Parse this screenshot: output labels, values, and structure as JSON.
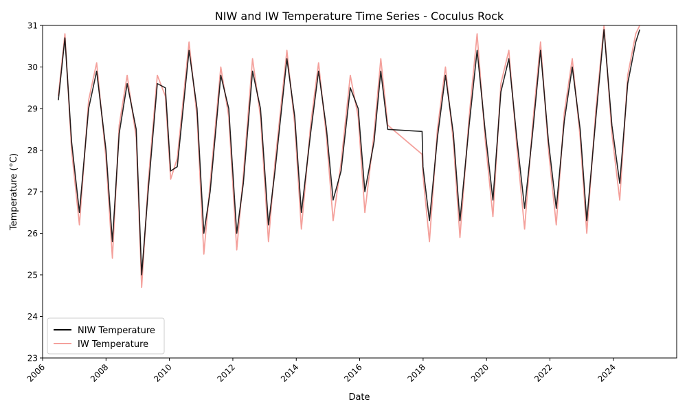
{
  "chart_data": {
    "type": "line",
    "title": "NIW and IW Temperature Time Series - Coculus Rock",
    "xlabel": "Date",
    "ylabel": "Temperature (°C)",
    "xlim": [
      "2006-01-01",
      "2025-12-31"
    ],
    "ylim": [
      23,
      31
    ],
    "x_ticks": [
      "2006",
      "2008",
      "2010",
      "2012",
      "2014",
      "2016",
      "2018",
      "2020",
      "2022",
      "2024"
    ],
    "y_ticks": [
      23,
      24,
      25,
      26,
      27,
      28,
      29,
      30,
      31
    ],
    "grid": false,
    "legend_position": "lower-left",
    "series": [
      {
        "name": "NIW Temperature",
        "color": "#000000",
        "x": [
          "2006-07-01",
          "2006-09-15",
          "2006-12-01",
          "2007-03-01",
          "2007-06-15",
          "2007-09-15",
          "2008-01-01",
          "2008-03-15",
          "2008-06-01",
          "2008-09-01",
          "2008-12-15",
          "2009-02-15",
          "2009-05-01",
          "2009-08-15",
          "2009-11-15",
          "2010-01-15",
          "2010-04-01",
          "2010-08-15",
          "2010-11-15",
          "2011-02-01",
          "2011-04-15",
          "2011-08-15",
          "2011-11-15",
          "2012-02-15",
          "2012-05-01",
          "2012-08-15",
          "2012-11-15",
          "2013-02-15",
          "2013-05-01",
          "2013-09-15",
          "2013-12-15",
          "2014-03-01",
          "2014-06-15",
          "2014-09-15",
          "2014-12-15",
          "2015-03-01",
          "2015-06-01",
          "2015-09-15",
          "2015-12-15",
          "2016-03-01",
          "2016-06-15",
          "2016-09-01",
          "2016-11-20",
          "2017-12-20",
          "2017-12-31",
          "2018-03-15",
          "2018-06-15",
          "2018-09-15",
          "2018-12-15",
          "2019-03-01",
          "2019-06-15",
          "2019-09-15",
          "2019-12-15",
          "2020-03-15",
          "2020-06-15",
          "2020-09-15",
          "2020-12-15",
          "2021-03-15",
          "2021-06-15",
          "2021-09-15",
          "2021-12-15",
          "2022-03-15",
          "2022-06-15",
          "2022-09-15",
          "2022-12-15",
          "2023-03-01",
          "2023-06-15",
          "2023-09-15",
          "2023-12-15",
          "2024-03-15",
          "2024-06-15",
          "2024-09-15",
          "2024-10-31"
        ],
        "y": [
          29.2,
          30.7,
          28.2,
          26.5,
          29.0,
          29.9,
          28.0,
          25.8,
          28.4,
          29.6,
          28.5,
          25.0,
          27.0,
          29.6,
          29.5,
          27.5,
          27.6,
          30.4,
          29.0,
          26.0,
          27.0,
          29.8,
          29.0,
          26.0,
          27.2,
          29.9,
          29.0,
          26.2,
          27.5,
          30.2,
          28.8,
          26.5,
          28.4,
          29.9,
          28.5,
          26.8,
          27.5,
          29.5,
          29.0,
          27.0,
          28.2,
          29.9,
          28.5,
          28.45,
          27.6,
          26.3,
          28.3,
          29.8,
          28.4,
          26.3,
          28.6,
          30.4,
          28.5,
          26.8,
          29.4,
          30.2,
          28.3,
          26.6,
          28.4,
          30.4,
          28.2,
          26.6,
          28.7,
          30.0,
          28.5,
          26.3,
          28.8,
          30.9,
          28.6,
          27.2,
          29.6,
          30.6,
          30.9
        ]
      },
      {
        "name": "IW Temperature",
        "color": "#f4a19c",
        "x": [
          "2006-07-01",
          "2006-09-15",
          "2006-12-01",
          "2007-03-01",
          "2007-06-15",
          "2007-09-15",
          "2008-01-01",
          "2008-03-15",
          "2008-06-01",
          "2008-09-01",
          "2008-12-15",
          "2009-02-15",
          "2009-05-01",
          "2009-08-15",
          "2009-11-15",
          "2010-01-15",
          "2010-04-01",
          "2010-08-15",
          "2010-11-15",
          "2011-02-01",
          "2011-04-15",
          "2011-08-15",
          "2011-11-15",
          "2012-02-15",
          "2012-05-01",
          "2012-08-15",
          "2012-11-15",
          "2013-02-15",
          "2013-05-01",
          "2013-09-15",
          "2013-12-15",
          "2014-03-01",
          "2014-06-15",
          "2014-09-15",
          "2014-12-15",
          "2015-03-01",
          "2015-06-01",
          "2015-09-15",
          "2015-12-15",
          "2016-03-01",
          "2016-06-15",
          "2016-09-01",
          "2016-11-20",
          "2017-12-20",
          "2017-12-31",
          "2018-03-15",
          "2018-06-15",
          "2018-09-15",
          "2018-12-15",
          "2019-03-01",
          "2019-06-15",
          "2019-09-15",
          "2019-12-15",
          "2020-03-15",
          "2020-06-15",
          "2020-09-15",
          "2020-12-15",
          "2021-03-15",
          "2021-06-15",
          "2021-09-15",
          "2021-12-15",
          "2022-03-15",
          "2022-06-15",
          "2022-09-15",
          "2022-12-15",
          "2023-03-01",
          "2023-06-15",
          "2023-09-15",
          "2023-12-15",
          "2024-03-15",
          "2024-06-15",
          "2024-09-15",
          "2024-10-31"
        ],
        "y": [
          29.3,
          30.8,
          28.0,
          26.2,
          29.2,
          30.1,
          27.8,
          25.4,
          28.6,
          29.8,
          28.3,
          24.7,
          27.2,
          29.8,
          29.3,
          27.3,
          27.8,
          30.6,
          28.8,
          25.5,
          27.2,
          30.0,
          28.8,
          25.6,
          27.4,
          30.2,
          28.8,
          25.8,
          27.7,
          30.4,
          28.6,
          26.1,
          28.6,
          30.1,
          28.3,
          26.3,
          27.7,
          29.8,
          28.8,
          26.5,
          28.4,
          30.2,
          28.6,
          27.9,
          27.4,
          25.8,
          28.5,
          30.0,
          28.2,
          25.9,
          28.8,
          30.8,
          28.3,
          26.4,
          29.6,
          30.4,
          28.1,
          26.1,
          28.6,
          30.6,
          28.0,
          26.2,
          28.9,
          30.2,
          28.3,
          26.0,
          29.0,
          31.0,
          28.4,
          26.8,
          29.8,
          30.8,
          31.0
        ]
      }
    ]
  }
}
